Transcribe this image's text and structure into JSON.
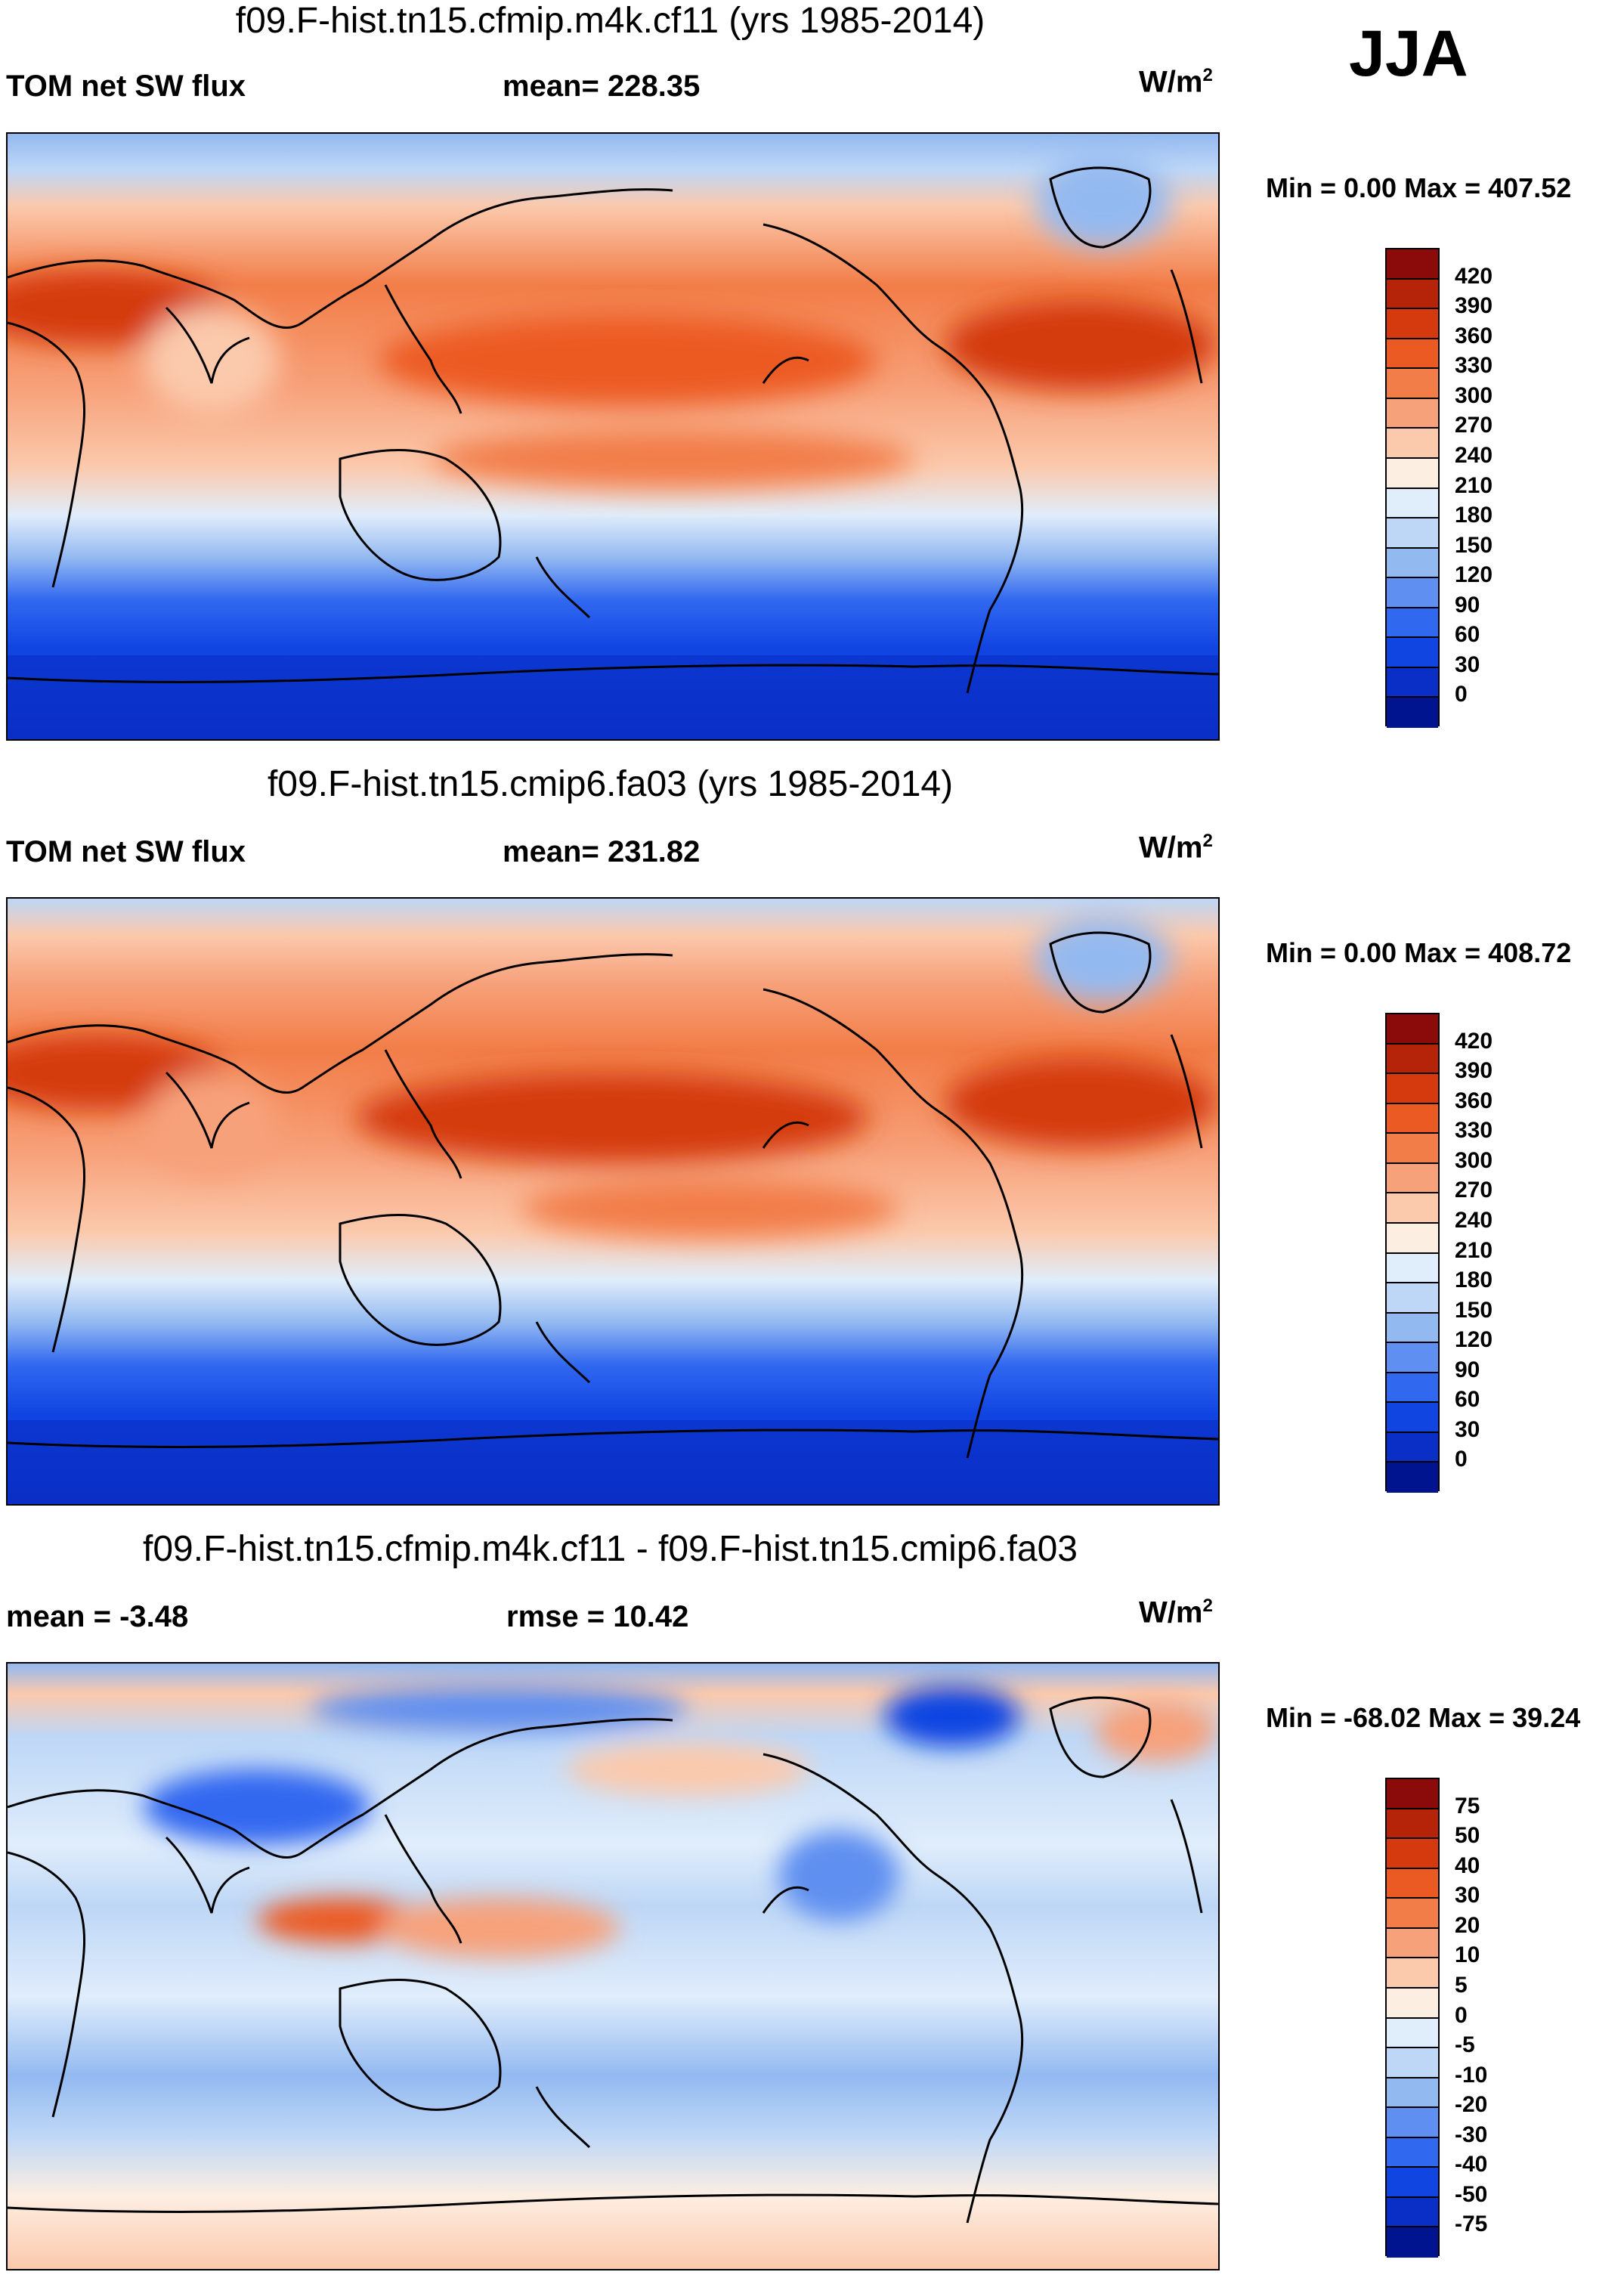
{
  "season": "JJA",
  "panels": [
    {
      "title": "f09.F-hist.tn15.cfmip.m4k.cf11 (yrs 1985-2014)",
      "left_label": "TOM net SW flux",
      "center_label": "mean= 228.35",
      "units": "W/m",
      "units_sup": "2",
      "minmax": "Min =    0.00 Max = 407.52"
    },
    {
      "title": "f09.F-hist.tn15.cmip6.fa03 (yrs 1985-2014)",
      "left_label": "TOM net SW flux",
      "center_label": "mean= 231.82",
      "units": "W/m",
      "units_sup": "2",
      "minmax": "Min =    0.00 Max = 408.72"
    },
    {
      "title": "f09.F-hist.tn15.cfmip.m4k.cf11 - f09.F-hist.tn15.cmip6.fa03",
      "left_label": "mean =  -3.48",
      "center_label": "rmse =  10.42",
      "units": "W/m",
      "units_sup": "2",
      "minmax": "Min = -68.02 Max =  39.24"
    }
  ],
  "chart_data": [
    {
      "type": "heatmap",
      "title": "f09.F-hist.tn15.cfmip.m4k.cf11 (yrs 1985-2014)",
      "variable": "TOM net SW flux",
      "mean": 228.35,
      "min": 0.0,
      "max": 407.52,
      "units": "W/m2",
      "colorbar_levels": [
        "420",
        "390",
        "360",
        "330",
        "300",
        "270",
        "240",
        "210",
        "180",
        "150",
        "120",
        "90",
        "60",
        "30",
        "0"
      ],
      "colorbar_colors": [
        "#8b0a0a",
        "#b52308",
        "#d43a0e",
        "#ec5a23",
        "#f27d48",
        "#f7a17a",
        "#fbc9ac",
        "#fdeee2",
        "#e0edfb",
        "#bed7f6",
        "#93b9f1",
        "#5f8ff0",
        "#3168f0",
        "#1145e2",
        "#0a2fc6",
        "#00148f"
      ]
    },
    {
      "type": "heatmap",
      "title": "f09.F-hist.tn15.cmip6.fa03 (yrs 1985-2014)",
      "variable": "TOM net SW flux",
      "mean": 231.82,
      "min": 0.0,
      "max": 408.72,
      "units": "W/m2",
      "colorbar_levels": [
        "420",
        "390",
        "360",
        "330",
        "300",
        "270",
        "240",
        "210",
        "180",
        "150",
        "120",
        "90",
        "60",
        "30",
        "0"
      ],
      "colorbar_colors": [
        "#8b0a0a",
        "#b52308",
        "#d43a0e",
        "#ec5a23",
        "#f27d48",
        "#f7a17a",
        "#fbc9ac",
        "#fdeee2",
        "#e0edfb",
        "#bed7f6",
        "#93b9f1",
        "#5f8ff0",
        "#3168f0",
        "#1145e2",
        "#0a2fc6",
        "#00148f"
      ]
    },
    {
      "type": "heatmap",
      "title": "f09.F-hist.tn15.cfmip.m4k.cf11 - f09.F-hist.tn15.cmip6.fa03",
      "variable": "difference",
      "mean": -3.48,
      "rmse": 10.42,
      "min": -68.02,
      "max": 39.24,
      "units": "W/m2",
      "colorbar_levels": [
        "75",
        "50",
        "40",
        "30",
        "20",
        "10",
        "5",
        "0",
        "-5",
        "-10",
        "-20",
        "-30",
        "-40",
        "-50",
        "-75"
      ],
      "colorbar_colors": [
        "#8b0a0a",
        "#b52308",
        "#d43a0e",
        "#ec5a23",
        "#f27d48",
        "#f7a17a",
        "#fbc9ac",
        "#fdeee2",
        "#e0edfb",
        "#bed7f6",
        "#93b9f1",
        "#5f8ff0",
        "#3168f0",
        "#1145e2",
        "#0a2fc6",
        "#00148f"
      ]
    }
  ]
}
